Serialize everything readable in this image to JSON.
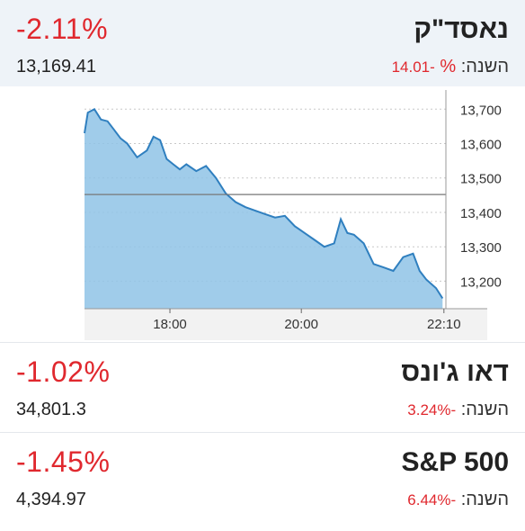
{
  "nasdaq": {
    "name": "נאסד\"ק",
    "change": "-2.11%",
    "price": "13,169.41",
    "ytd_label": "השנה:",
    "ytd_value": "-14.01",
    "ytd_percent": "%"
  },
  "dow": {
    "name": "דאו ג'ונס",
    "change": "-1.02%",
    "price": "34,801.3",
    "ytd_label": "השנה:",
    "ytd_value": "-3.24%"
  },
  "sp500": {
    "name": "S&P 500",
    "change": "-1.45%",
    "price": "4,394.97",
    "ytd_label": "השנה:",
    "ytd_value": "-6.44%"
  },
  "colors": {
    "negative": "#e0282e",
    "area_fill": "#8fc3e6",
    "line": "#2f7fbf"
  },
  "chart_data": {
    "type": "area",
    "x_tick_labels": [
      "18:00",
      "20:00",
      "22:10"
    ],
    "y_tick_labels": [
      "13,700",
      "13,600",
      "13,500",
      "13,400",
      "13,300",
      "13,200"
    ],
    "y_ticks": [
      13700,
      13600,
      13500,
      13400,
      13300,
      13200
    ],
    "ylim": [
      13120,
      13740
    ],
    "xlim": [
      16.7,
      22.2
    ],
    "previous_close": 13452,
    "x_ticks": [
      18.0,
      20.0,
      22.17
    ],
    "x": [
      16.7,
      16.75,
      16.85,
      16.95,
      17.05,
      17.15,
      17.25,
      17.35,
      17.5,
      17.65,
      17.75,
      17.85,
      17.95,
      18.05,
      18.15,
      18.25,
      18.4,
      18.55,
      18.7,
      18.85,
      19.0,
      19.15,
      19.3,
      19.45,
      19.6,
      19.75,
      19.9,
      20.05,
      20.2,
      20.35,
      20.5,
      20.6,
      20.7,
      20.8,
      20.95,
      21.1,
      21.25,
      21.4,
      21.55,
      21.7,
      21.8,
      21.9,
      22.05,
      22.15
    ],
    "values": [
      13630,
      13690,
      13700,
      13670,
      13665,
      13640,
      13615,
      13600,
      13560,
      13580,
      13620,
      13610,
      13555,
      13540,
      13525,
      13540,
      13520,
      13535,
      13500,
      13455,
      13430,
      13415,
      13405,
      13395,
      13385,
      13390,
      13360,
      13340,
      13320,
      13300,
      13310,
      13380,
      13340,
      13335,
      13310,
      13250,
      13240,
      13230,
      13270,
      13280,
      13230,
      13205,
      13180,
      13150
    ]
  }
}
